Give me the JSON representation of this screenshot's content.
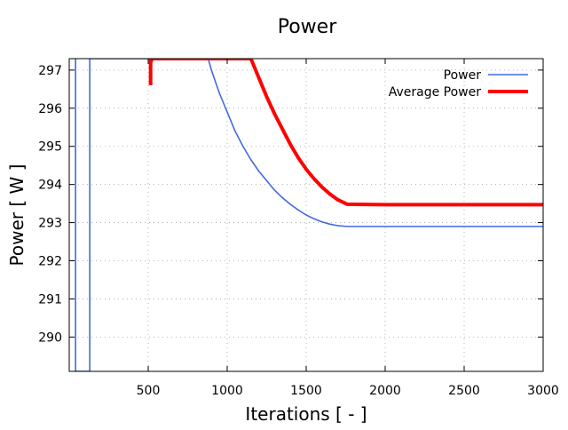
{
  "chart_data": {
    "type": "line",
    "title": "Power",
    "xlabel": "Iterations [ - ]",
    "ylabel": "Power [ W ]",
    "xlim": [
      0,
      3000
    ],
    "ylim": [
      289.1,
      297.3
    ],
    "xticks": [
      500,
      1000,
      1500,
      2000,
      2500,
      3000
    ],
    "yticks": [
      290,
      291,
      292,
      293,
      294,
      295,
      296,
      297
    ],
    "grid": true,
    "legend_position": "top-right",
    "series": [
      {
        "name": "Power",
        "color": "#4169e1",
        "x": [
          40,
          40,
          40,
          130,
          130,
          130,
          880,
          900,
          950,
          1000,
          1050,
          1100,
          1150,
          1200,
          1250,
          1300,
          1350,
          1400,
          1450,
          1500,
          1550,
          1600,
          1650,
          1700,
          1760,
          1800,
          2000,
          2500,
          3000
        ],
        "y": [
          289.1,
          297.3,
          289.1,
          289.1,
          297.3,
          297.3,
          297.3,
          297.0,
          296.4,
          295.9,
          295.4,
          295.0,
          294.65,
          294.35,
          294.1,
          293.85,
          293.65,
          293.48,
          293.33,
          293.2,
          293.1,
          293.02,
          292.96,
          292.92,
          292.9,
          292.9,
          292.9,
          292.9,
          292.9
        ]
      },
      {
        "name": "Average Power",
        "color": "#ff0000",
        "x": [
          515,
          515,
          515,
          525,
          1150,
          1200,
          1250,
          1300,
          1350,
          1400,
          1450,
          1500,
          1550,
          1600,
          1650,
          1700,
          1760,
          1800,
          2000,
          2500,
          3000
        ],
        "y": [
          296.6,
          297.3,
          297.2,
          297.3,
          297.3,
          296.8,
          296.3,
          295.85,
          295.45,
          295.05,
          294.7,
          294.4,
          294.15,
          293.93,
          293.75,
          293.6,
          293.48,
          293.48,
          293.47,
          293.47,
          293.47
        ]
      }
    ]
  }
}
